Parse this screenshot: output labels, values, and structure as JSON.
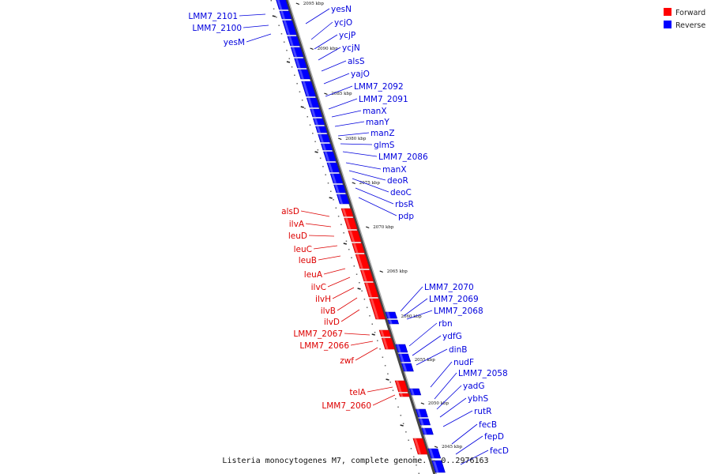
{
  "legend": [
    {
      "label": "Forward",
      "color": "#ff0000"
    },
    {
      "label": "Reverse",
      "color": "#0000ff"
    }
  ],
  "colors": {
    "forward": "#ff0000",
    "reverse": "#0000ff",
    "axis": "#555555"
  },
  "caption": "Listeria monocytogenes M7, complete genome. - 0..2976163",
  "ticks": [
    "2095 kbp",
    "2090 kbp",
    "2085 kbp",
    "2080 kbp",
    "2075 kbp",
    "2070 kbp",
    "2065 kbp",
    "2060 kbp",
    "2055 kbp",
    "2050 kbp",
    "2045 kbp"
  ],
  "genes": [
    {
      "name": "LMM7_2101",
      "strand": "reverse"
    },
    {
      "name": "LMM7_2100",
      "strand": "reverse"
    },
    {
      "name": "yesM",
      "strand": "reverse"
    },
    {
      "name": "yesN",
      "strand": "reverse"
    },
    {
      "name": "ycjO",
      "strand": "reverse"
    },
    {
      "name": "ycjP",
      "strand": "reverse"
    },
    {
      "name": "ycjN",
      "strand": "reverse"
    },
    {
      "name": "alsS",
      "strand": "reverse"
    },
    {
      "name": "yajO",
      "strand": "reverse"
    },
    {
      "name": "LMM7_2092",
      "strand": "reverse"
    },
    {
      "name": "LMM7_2091",
      "strand": "reverse"
    },
    {
      "name": "manX",
      "strand": "reverse"
    },
    {
      "name": "manY",
      "strand": "reverse"
    },
    {
      "name": "manZ",
      "strand": "reverse"
    },
    {
      "name": "glmS",
      "strand": "reverse"
    },
    {
      "name": "LMM7_2086",
      "strand": "reverse"
    },
    {
      "name": "manX",
      "strand": "reverse"
    },
    {
      "name": "deoR",
      "strand": "reverse"
    },
    {
      "name": "deoC",
      "strand": "reverse"
    },
    {
      "name": "rbsR",
      "strand": "reverse"
    },
    {
      "name": "pdp",
      "strand": "reverse"
    },
    {
      "name": "alsD",
      "strand": "forward"
    },
    {
      "name": "ilvA",
      "strand": "forward"
    },
    {
      "name": "leuD",
      "strand": "forward"
    },
    {
      "name": "leuC",
      "strand": "forward"
    },
    {
      "name": "leuB",
      "strand": "forward"
    },
    {
      "name": "leuA",
      "strand": "forward"
    },
    {
      "name": "ilvC",
      "strand": "forward"
    },
    {
      "name": "ilvH",
      "strand": "forward"
    },
    {
      "name": "ilvB",
      "strand": "forward"
    },
    {
      "name": "ilvD",
      "strand": "forward"
    },
    {
      "name": "LMM7_2067",
      "strand": "forward"
    },
    {
      "name": "LMM7_2066",
      "strand": "forward"
    },
    {
      "name": "zwf",
      "strand": "forward"
    },
    {
      "name": "LMM7_2070",
      "strand": "reverse"
    },
    {
      "name": "LMM7_2069",
      "strand": "reverse"
    },
    {
      "name": "LMM7_2068",
      "strand": "reverse"
    },
    {
      "name": "rbn",
      "strand": "reverse"
    },
    {
      "name": "ydfG",
      "strand": "reverse"
    },
    {
      "name": "dinB",
      "strand": "reverse"
    },
    {
      "name": "nudF",
      "strand": "reverse"
    },
    {
      "name": "LMM7_2058",
      "strand": "reverse"
    },
    {
      "name": "yadG",
      "strand": "reverse"
    },
    {
      "name": "ybhS",
      "strand": "reverse"
    },
    {
      "name": "rutR",
      "strand": "reverse"
    },
    {
      "name": "fecB",
      "strand": "reverse"
    },
    {
      "name": "fepD",
      "strand": "reverse"
    },
    {
      "name": "fecD",
      "strand": "reverse"
    },
    {
      "name": "telA",
      "strand": "forward"
    },
    {
      "name": "LMM7_2060",
      "strand": "forward"
    }
  ]
}
